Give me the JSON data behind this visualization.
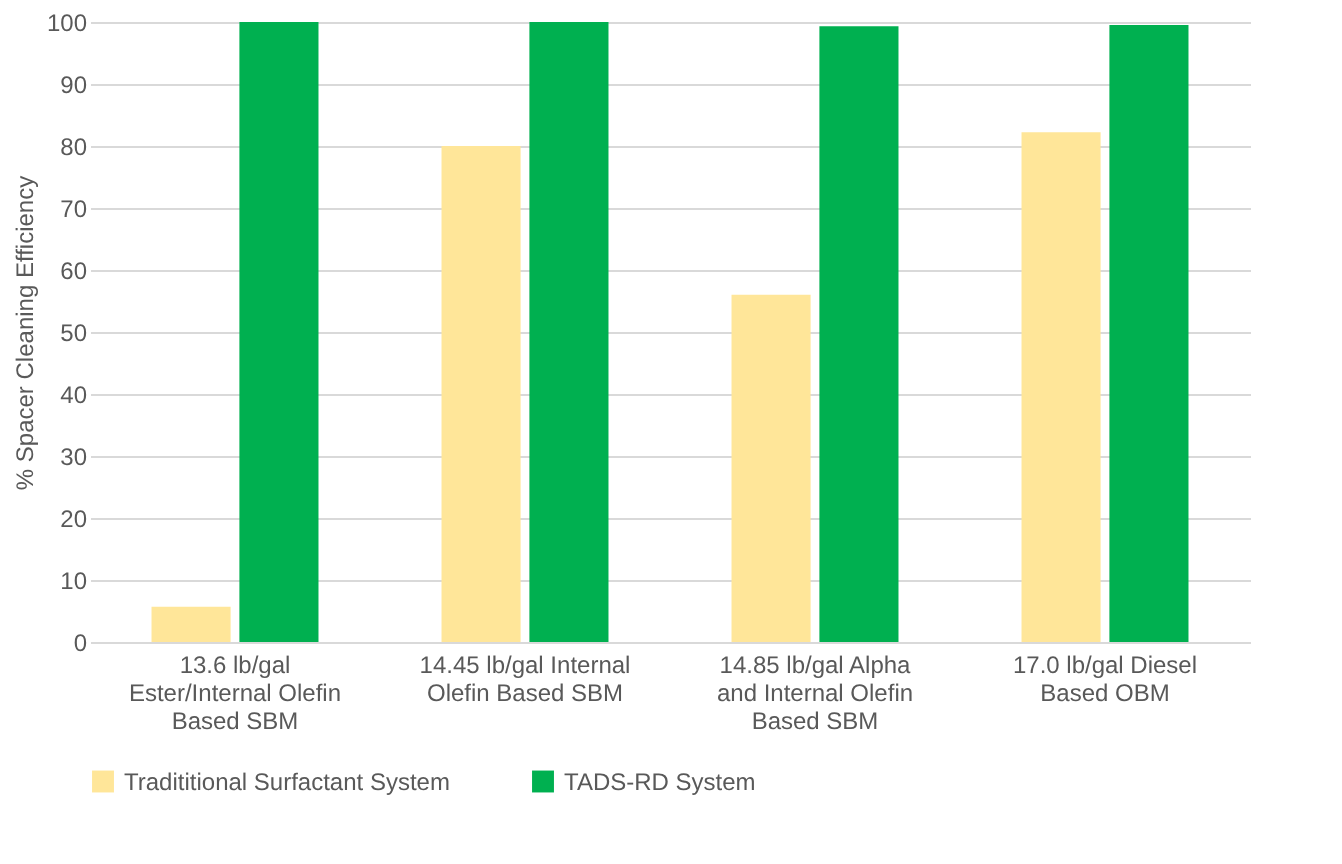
{
  "chart_data": {
    "type": "bar",
    "ylabel": "% Spacer Cleaning Efficiency",
    "categories": [
      "13.6 lb/gal Ester/Internal Olefin Based SBM",
      "14.45 lb/gal Internal Olefin Based SBM",
      "14.85 lb/gal Alpha and Internal Olefin Based SBM",
      "17.0 lb/gal Diesel Based OBM"
    ],
    "series": [
      {
        "name": "Tradititional Surfactant System",
        "color": "#ffe699",
        "values": [
          5.7,
          80,
          56,
          82.2
        ]
      },
      {
        "name": "TADS-RD System",
        "color": "#00b050",
        "values": [
          100,
          100,
          99.3,
          99.5
        ]
      }
    ],
    "ylim": [
      0,
      100
    ],
    "yticks": [
      0,
      10,
      20,
      30,
      40,
      50,
      60,
      70,
      80,
      90,
      100
    ],
    "grid": "y",
    "legend": "bottom"
  }
}
